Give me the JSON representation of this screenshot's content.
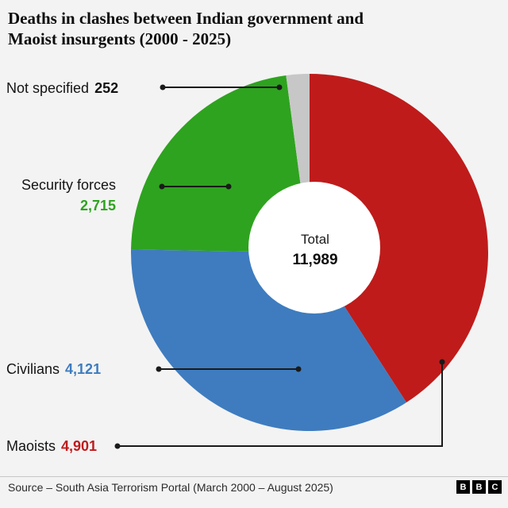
{
  "title": {
    "line1": "Deaths in clashes between Indian government and",
    "line2": "Maoist insurgents (2000 - 2025)"
  },
  "center": {
    "label": "Total",
    "value": "11,989"
  },
  "labels": {
    "not_specified": {
      "name": "Not specified",
      "value": "252"
    },
    "security_forces": {
      "name": "Security forces",
      "value": "2,715"
    },
    "civilians": {
      "name": "Civilians",
      "value": "4,121"
    },
    "maoists": {
      "name": "Maoists",
      "value": "4,901"
    }
  },
  "source": "Source – South Asia Terrorism Portal (March 2000 – August 2025)",
  "bbc_logo": [
    "B",
    "B",
    "C"
  ],
  "chart_data": {
    "type": "pie",
    "subtype": "donut",
    "title": "Deaths in clashes between Indian government and Maoist insurgents (2000 - 2025)",
    "categories": [
      "Maoists",
      "Civilians",
      "Security forces",
      "Not specified"
    ],
    "values": [
      4901,
      4121,
      2715,
      252
    ],
    "value_labels": [
      "4,901",
      "4,121",
      "2,715",
      "252"
    ],
    "total": 11989,
    "total_label": "11,989",
    "center_text": "Total",
    "colors": [
      "#bf1b1b",
      "#3e7cbf",
      "#2ea31f",
      "#c7c7c7"
    ],
    "text_color": "#1a1a1a",
    "start_angle_deg": 0,
    "direction": "clockwise",
    "legend_position": "callout-labels",
    "grid": false
  }
}
